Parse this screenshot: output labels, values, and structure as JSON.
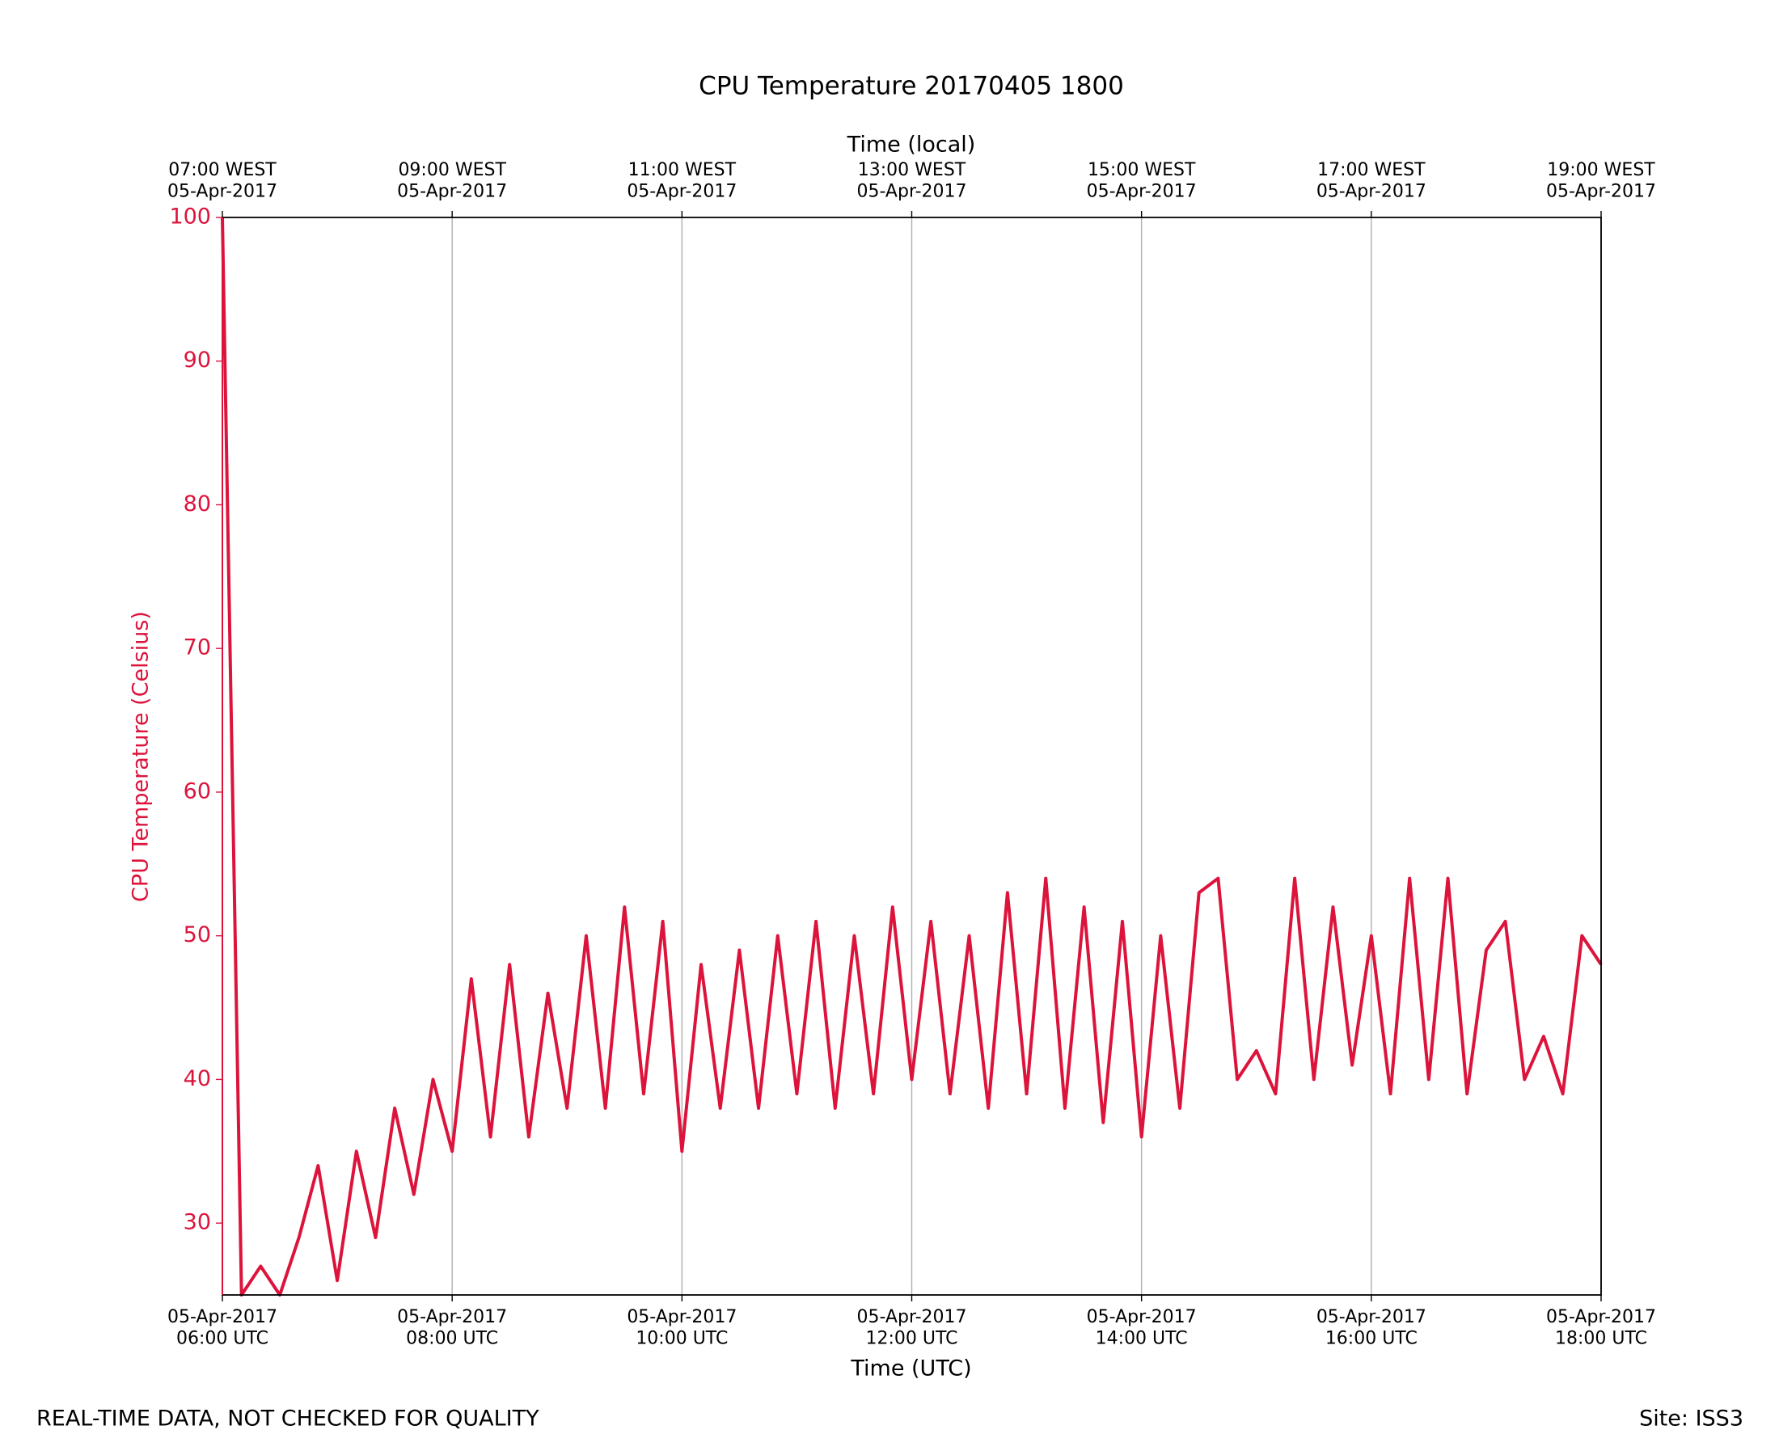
{
  "chart_data": {
    "type": "line",
    "title": "CPU Temperature 20170405 1800",
    "xlabel": "Time (UTC)",
    "x2label": "Time (local)",
    "ylabel": "CPU Temperature (Celsius)",
    "footnote": "REAL-TIME DATA, NOT CHECKED FOR QUALITY",
    "site": "Site: ISS3",
    "color": "#dc143c",
    "grid": true,
    "x": [
      "2017-04-05 06:00",
      "2017-04-05 06:10",
      "2017-04-05 06:20",
      "2017-04-05 06:30",
      "2017-04-05 06:40",
      "2017-04-05 06:50",
      "2017-04-05 07:00",
      "2017-04-05 07:10",
      "2017-04-05 07:20",
      "2017-04-05 07:30",
      "2017-04-05 07:40",
      "2017-04-05 07:50",
      "2017-04-05 08:00",
      "2017-04-05 08:10",
      "2017-04-05 08:20",
      "2017-04-05 08:30",
      "2017-04-05 08:40",
      "2017-04-05 08:50",
      "2017-04-05 09:00",
      "2017-04-05 09:10",
      "2017-04-05 09:20",
      "2017-04-05 09:30",
      "2017-04-05 09:40",
      "2017-04-05 09:50",
      "2017-04-05 10:00",
      "2017-04-05 10:10",
      "2017-04-05 10:20",
      "2017-04-05 10:30",
      "2017-04-05 10:40",
      "2017-04-05 10:50",
      "2017-04-05 11:00",
      "2017-04-05 11:10",
      "2017-04-05 11:20",
      "2017-04-05 11:30",
      "2017-04-05 11:40",
      "2017-04-05 11:50",
      "2017-04-05 12:00",
      "2017-04-05 12:10",
      "2017-04-05 12:20",
      "2017-04-05 12:30",
      "2017-04-05 12:40",
      "2017-04-05 12:50",
      "2017-04-05 13:00",
      "2017-04-05 13:10",
      "2017-04-05 13:20",
      "2017-04-05 13:30",
      "2017-04-05 13:40",
      "2017-04-05 13:50",
      "2017-04-05 14:00",
      "2017-04-05 14:10",
      "2017-04-05 14:20",
      "2017-04-05 14:30",
      "2017-04-05 14:40",
      "2017-04-05 14:50",
      "2017-04-05 15:00",
      "2017-04-05 15:10",
      "2017-04-05 15:20",
      "2017-04-05 15:30",
      "2017-04-05 15:40",
      "2017-04-05 15:50",
      "2017-04-05 16:00",
      "2017-04-05 16:10",
      "2017-04-05 16:20",
      "2017-04-05 16:30",
      "2017-04-05 16:40",
      "2017-04-05 16:50",
      "2017-04-05 17:00",
      "2017-04-05 17:10",
      "2017-04-05 17:20",
      "2017-04-05 17:30",
      "2017-04-05 17:40",
      "2017-04-05 17:50",
      "2017-04-05 18:00"
    ],
    "values": [
      100,
      25,
      27,
      25,
      29,
      34,
      26,
      35,
      29,
      38,
      32,
      40,
      35,
      47,
      36,
      48,
      36,
      46,
      38,
      50,
      38,
      52,
      39,
      51,
      35,
      48,
      38,
      49,
      38,
      50,
      39,
      51,
      38,
      50,
      39,
      52,
      40,
      51,
      39,
      50,
      38,
      53,
      39,
      54,
      38,
      52,
      37,
      51,
      36,
      50,
      38,
      53,
      54,
      40,
      42,
      39,
      54,
      40,
      52,
      41,
      50,
      39,
      54,
      40,
      54,
      39,
      49,
      51,
      40,
      43,
      39,
      50,
      48
    ],
    "xlim": [
      "2017-04-05 06:00",
      "2017-04-05 18:00"
    ],
    "xticks": [
      {
        "value": "2017-04-05 06:00",
        "label": "05-Apr-2017\n06:00 UTC"
      },
      {
        "value": "2017-04-05 08:00",
        "label": "05-Apr-2017\n08:00 UTC"
      },
      {
        "value": "2017-04-05 10:00",
        "label": "05-Apr-2017\n10:00 UTC"
      },
      {
        "value": "2017-04-05 12:00",
        "label": "05-Apr-2017\n12:00 UTC"
      },
      {
        "value": "2017-04-05 14:00",
        "label": "05-Apr-2017\n14:00 UTC"
      },
      {
        "value": "2017-04-05 16:00",
        "label": "05-Apr-2017\n16:00 UTC"
      },
      {
        "value": "2017-04-05 18:00",
        "label": "05-Apr-2017\n18:00 UTC"
      }
    ],
    "x2ticks": [
      {
        "value": "2017-04-05 06:00",
        "label": "07:00 WEST\n05-Apr-2017"
      },
      {
        "value": "2017-04-05 08:00",
        "label": "09:00 WEST\n05-Apr-2017"
      },
      {
        "value": "2017-04-05 10:00",
        "label": "11:00 WEST\n05-Apr-2017"
      },
      {
        "value": "2017-04-05 12:00",
        "label": "13:00 WEST\n05-Apr-2017"
      },
      {
        "value": "2017-04-05 14:00",
        "label": "15:00 WEST\n05-Apr-2017"
      },
      {
        "value": "2017-04-05 16:00",
        "label": "17:00 WEST\n05-Apr-2017"
      },
      {
        "value": "2017-04-05 18:00",
        "label": "19:00 WEST\n05-Apr-2017"
      }
    ],
    "ylim": [
      25,
      100
    ],
    "yticks": [
      30,
      40,
      50,
      60,
      70,
      80,
      90,
      100
    ]
  }
}
